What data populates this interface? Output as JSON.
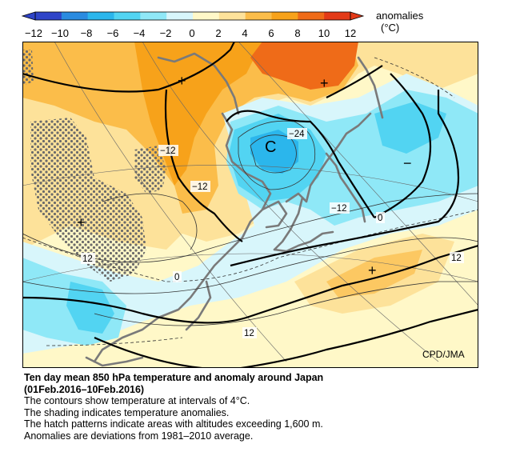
{
  "legend": {
    "title": "anomalies",
    "unit": "(°C)",
    "ticks": [
      "−12",
      "−10",
      "−8",
      "−6",
      "−4",
      "−2",
      "0",
      "2",
      "4",
      "6",
      "8",
      "10",
      "12"
    ],
    "colors": [
      "#2f44c8",
      "#2a8be0",
      "#2bb6ec",
      "#52d4f2",
      "#8fe8f7",
      "#d8f6fb",
      "#fff8c8",
      "#fde29a",
      "#fbbd4a",
      "#f7a21a",
      "#ef6b18",
      "#e33a17"
    ]
  },
  "map": {
    "contour_labels": [
      "−24",
      "−12",
      "−12",
      "−12",
      "0",
      "0",
      "12",
      "12",
      "12"
    ],
    "markers": [
      "+",
      "+",
      "+",
      "+",
      "−",
      "C"
    ]
  },
  "credit": "CPD/JMA",
  "caption": {
    "title_line1": "Ten day mean 850 hPa temperature and anomaly around Japan",
    "title_line2": "(01Feb.2016–10Feb.2016)",
    "line1": "The contours show temperature at intervals of 4°C.",
    "line2": "The shading indicates temperature anomalies.",
    "line3": "The hatch patterns indicate areas with altitudes exceeding 1,600 m.",
    "line4": "Anomalies are deviations from 1981–2010 average."
  }
}
